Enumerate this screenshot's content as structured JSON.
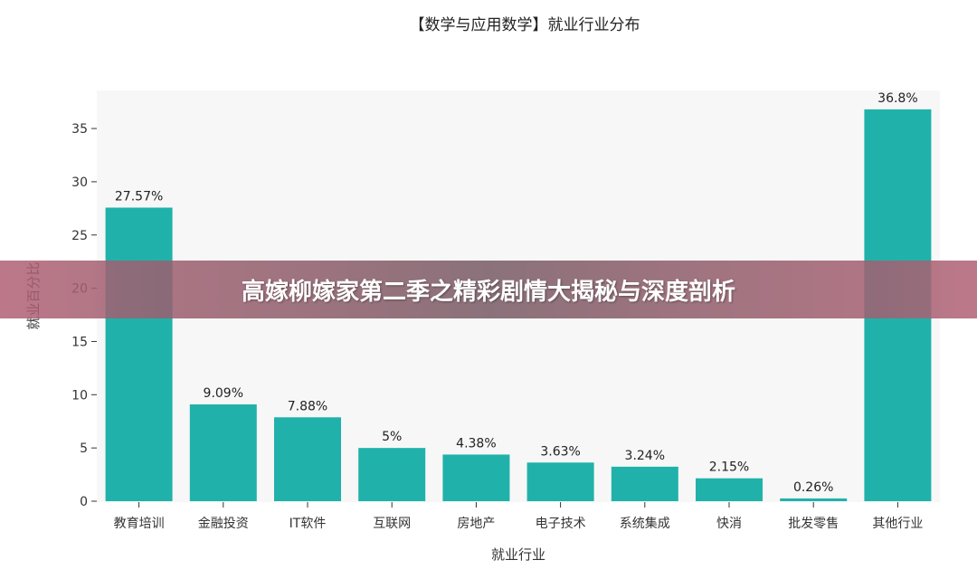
{
  "banner": {
    "title": "高嫁柳嫁家第二季之精彩剧情大揭秘与深度剖析"
  },
  "chart_data": {
    "type": "bar",
    "title": "【数学与应用数学】就业行业分布",
    "xlabel": "就业行业",
    "ylabel": "就业百分比",
    "categories": [
      "教育培训",
      "金融投资",
      "IT软件",
      "互联网",
      "房地产",
      "电子技术",
      "系统集成",
      "快消",
      "批发零售",
      "其他行业"
    ],
    "values": [
      27.57,
      9.09,
      7.88,
      5,
      4.38,
      3.63,
      3.24,
      2.15,
      0.26,
      36.8
    ],
    "value_labels": [
      "27.57%",
      "9.09%",
      "7.88%",
      "5%",
      "4.38%",
      "3.63%",
      "3.24%",
      "2.15%",
      "0.26%",
      "36.8%"
    ],
    "yticks": [
      0,
      5,
      10,
      15,
      20,
      25,
      30,
      35
    ],
    "ylim": [
      0,
      38.6
    ],
    "grid": false,
    "legend": "none",
    "bar_color": "#20b2aa",
    "plot_background": "#f7f7f7"
  }
}
